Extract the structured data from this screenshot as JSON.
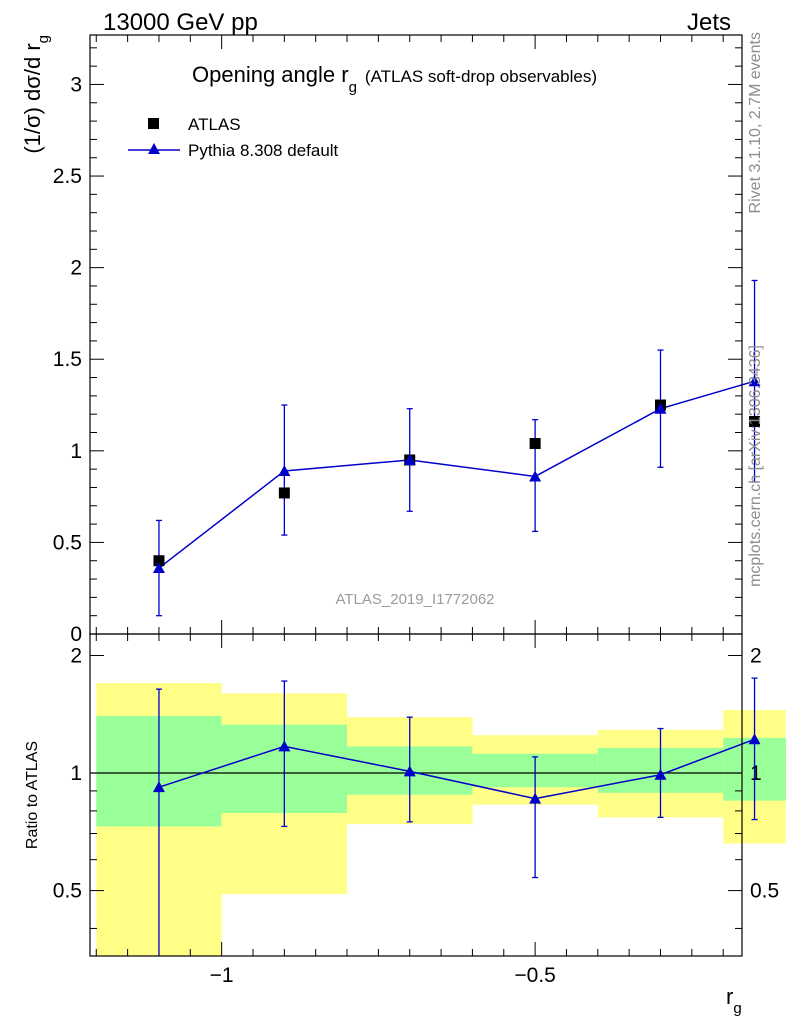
{
  "header": {
    "left": "13000 GeV pp",
    "right": "Jets"
  },
  "side_labels": {
    "rivet": "Rivet 3.1.10,  2.7M events",
    "mcplots": "mcplots.cern.ch [arXiv:1306.3436]"
  },
  "watermark": "ATLAS_2019_I1772062",
  "colors": {
    "mc": "#0000cc",
    "data": "#000000",
    "band_inner": "#99ff99",
    "band_outer": "#ffff88"
  },
  "chart_data": [
    {
      "type": "scatter",
      "panel": "main",
      "title": "Opening angle r",
      "title_sub": "g",
      "title_suffix": "(ATLAS soft-drop observables)",
      "ylabel": "(1/σ) dσ/d r",
      "ylabel_sub": "g",
      "xlim": [
        -1.21,
        -0.17
      ],
      "ylim": [
        0,
        3.27
      ],
      "yticks": [
        0,
        0.5,
        1,
        1.5,
        2,
        2.5,
        3
      ],
      "ytick_labels": [
        "0",
        "0.5",
        "1",
        "1.5",
        "2",
        "2.5",
        "3"
      ],
      "legend": {
        "placement": "top-left"
      },
      "series": [
        {
          "name": "ATLAS",
          "marker": "square",
          "x": [
            -1.1,
            -0.9,
            -0.7,
            -0.5,
            -0.3,
            -0.15
          ],
          "y": [
            0.4,
            0.77,
            0.95,
            1.04,
            1.25,
            1.16
          ]
        },
        {
          "name": "Pythia 8.308 default",
          "marker": "triangle",
          "x": [
            -1.1,
            -0.9,
            -0.7,
            -0.5,
            -0.3,
            -0.15
          ],
          "y": [
            0.36,
            0.89,
            0.95,
            0.86,
            1.23,
            1.38
          ],
          "err_low": [
            0.1,
            0.54,
            0.67,
            0.56,
            0.91,
            0.83
          ],
          "err_high": [
            0.62,
            1.25,
            1.23,
            1.17,
            1.55,
            1.93
          ]
        }
      ]
    },
    {
      "type": "scatter",
      "panel": "ratio",
      "ylabel": "Ratio to ATLAS",
      "xlabel": "r",
      "xlabel_sub": "g",
      "xlim": [
        -1.21,
        -0.17
      ],
      "ylim": [
        0.34,
        2.27
      ],
      "xticks": [
        -1,
        -0.5
      ],
      "xtick_labels": [
        "−1",
        "−0.5"
      ],
      "yticks": [
        0.5,
        1,
        2
      ],
      "ytick_labels": [
        "0.5",
        "1",
        "2"
      ],
      "bands": [
        {
          "x0": -1.2,
          "x1": -1.0,
          "inner": [
            0.73,
            1.4
          ],
          "outer": [
            0.25,
            1.7
          ]
        },
        {
          "x0": -1.0,
          "x1": -0.8,
          "inner": [
            0.79,
            1.33
          ],
          "outer": [
            0.49,
            1.6
          ]
        },
        {
          "x0": -0.8,
          "x1": -0.6,
          "inner": [
            0.88,
            1.17
          ],
          "outer": [
            0.74,
            1.39
          ]
        },
        {
          "x0": -0.6,
          "x1": -0.4,
          "inner": [
            0.92,
            1.12
          ],
          "outer": [
            0.83,
            1.25
          ]
        },
        {
          "x0": -0.4,
          "x1": -0.2,
          "inner": [
            0.89,
            1.16
          ],
          "outer": [
            0.77,
            1.29
          ]
        },
        {
          "x0": -0.2,
          "x1": -0.1,
          "inner": [
            0.85,
            1.23
          ],
          "outer": [
            0.66,
            1.45
          ]
        }
      ],
      "series": [
        {
          "name": "Pythia 8.308 default",
          "x": [
            -1.1,
            -0.9,
            -0.7,
            -0.5,
            -0.3,
            -0.15
          ],
          "y": [
            0.92,
            1.17,
            1.01,
            0.86,
            0.99,
            1.22
          ],
          "err_low": [
            0.2,
            0.73,
            0.75,
            0.54,
            0.77,
            0.76
          ],
          "err_high": [
            1.64,
            1.72,
            1.39,
            1.1,
            1.3,
            1.75
          ]
        }
      ]
    }
  ]
}
